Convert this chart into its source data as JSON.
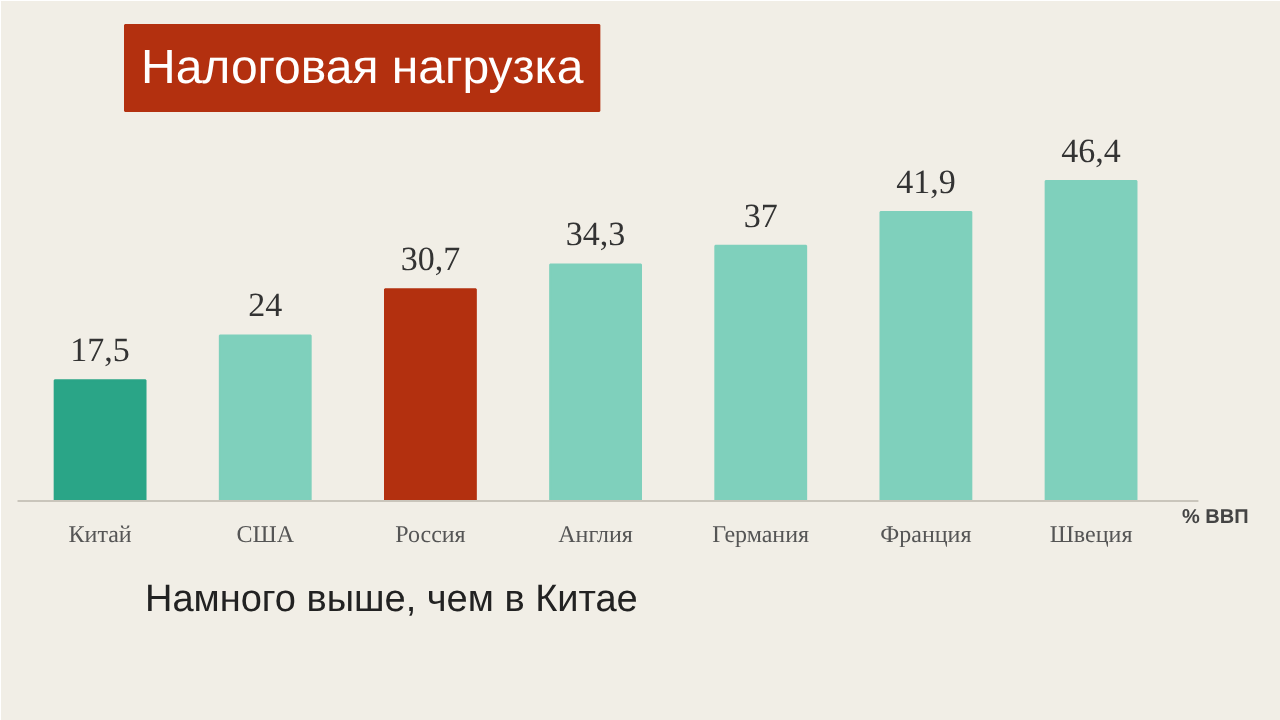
{
  "chart_data": {
    "type": "bar",
    "title": "Налоговая нагрузка",
    "categories": [
      "Китай",
      "США",
      "Россия",
      "Англия",
      "Германия",
      "Франция",
      "Швеция"
    ],
    "values": [
      17.5,
      24,
      30.7,
      34.3,
      37,
      41.9,
      46.4
    ],
    "colors": [
      "#2aa587",
      "#7fd0bc",
      "#b3300f",
      "#7fd0bc",
      "#7fd0bc",
      "#7fd0bc",
      "#7fd0bc"
    ],
    "data_labels": true,
    "value_labels": [
      "17,5",
      "24",
      "30,7",
      "34,3",
      "37",
      "41,9",
      "46,4"
    ],
    "ylabel": "% ВВП",
    "annotations": [
      "Намного выше, чем в Китае"
    ]
  }
}
